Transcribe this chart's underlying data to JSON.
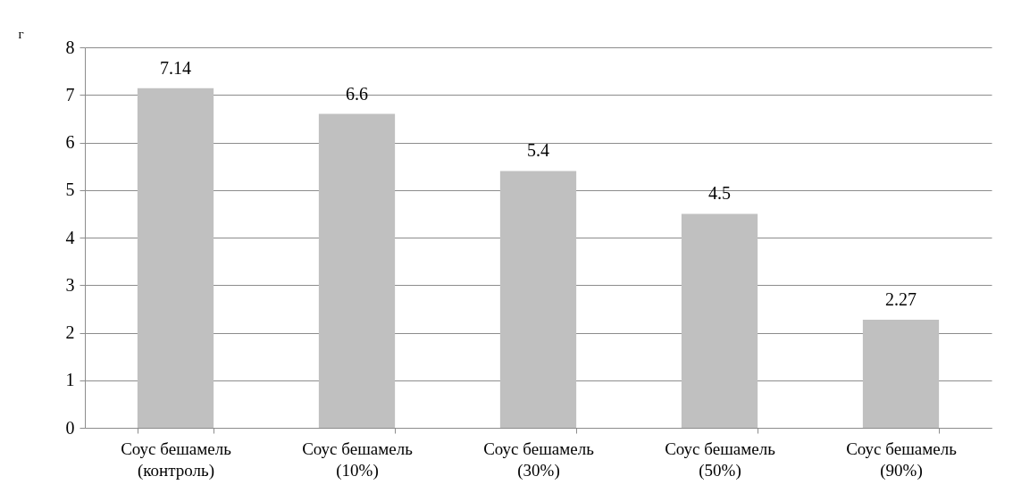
{
  "chart_data": {
    "type": "bar",
    "ylabel": "г",
    "categories": [
      "Соус бешамель\n(контроль)",
      "Соус бешамель\n(10%)",
      "Соус бешамель\n(30%)",
      "Соус бешамель\n(50%)",
      "Соус бешамель\n(90%)"
    ],
    "values": [
      7.14,
      6.6,
      5.4,
      4.5,
      2.27
    ],
    "color": "#c0c0c0",
    "ylim": [
      0,
      8
    ],
    "yticks": [
      0,
      1,
      2,
      3,
      4,
      5,
      6,
      7,
      8
    ],
    "grid": "y",
    "data_labels": true
  }
}
